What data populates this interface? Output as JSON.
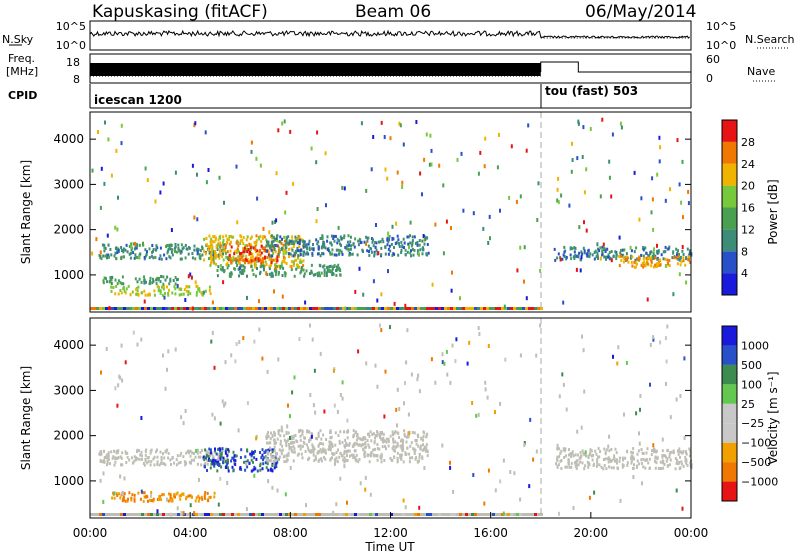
{
  "header": {
    "station": "Kapuskasing (fitACF)",
    "beam": "Beam 06",
    "date": "06/May/2014"
  },
  "noise_panel": {
    "left_label": "N.Sky",
    "right_label": "N.Search",
    "left_ticks": [
      "10^5",
      "10^0"
    ],
    "right_ticks": [
      "10^5",
      "10^0"
    ]
  },
  "freq_panel": {
    "left_label_1": "Freq.",
    "left_label_2": "[MHz]",
    "right_label": "Nave",
    "left_ticks": [
      "18",
      "8"
    ],
    "right_ticks": [
      "60",
      "0"
    ]
  },
  "cpid_panel": {
    "label": "CPID",
    "programs": [
      {
        "name": "icescan 1200",
        "start_hour": 0
      },
      {
        "name": "tou (fast) 503",
        "start_hour": 18
      }
    ]
  },
  "colors": {
    "power_scale": [
      "#1a1adc",
      "#2850c8",
      "#3c8c78",
      "#4aa050",
      "#78c83c",
      "#f0b400",
      "#f07800",
      "#e61414"
    ],
    "velocity_scale": [
      "#e61414",
      "#f07800",
      "#f0a000",
      "#c8c8c8",
      "#c8c8c8",
      "#64c850",
      "#3c8c50",
      "#2850c8",
      "#1a1adc"
    ],
    "grey_scatter": "#bebeb4"
  },
  "chart_data": [
    {
      "type": "heatmap",
      "name_in_figure": "power",
      "xlabel": "",
      "ylabel": "Slant Range [km]",
      "x_range_hours": [
        0,
        24
      ],
      "y_range_km": [
        180,
        4600
      ],
      "yticks": [
        1000,
        2000,
        3000,
        4000
      ],
      "colorbar": {
        "label": "Power [dB]",
        "ticks": [
          "4",
          "8",
          "12",
          "16",
          "20",
          "24",
          "28"
        ],
        "range": [
          0,
          30
        ]
      },
      "regions": [
        {
          "t0": 0.3,
          "t1": 5.5,
          "r0": 1380,
          "r1": 1720,
          "level": 10
        },
        {
          "t0": 0.8,
          "t1": 5.0,
          "r0": 580,
          "r1": 780,
          "level": 18
        },
        {
          "t0": 0.5,
          "t1": 3.5,
          "r0": 820,
          "r1": 1000,
          "level": 12
        },
        {
          "t0": 4.5,
          "t1": 8.5,
          "r0": 1200,
          "r1": 1900,
          "level": 20
        },
        {
          "t0": 5.5,
          "t1": 7.5,
          "r0": 1300,
          "r1": 1700,
          "level": 26
        },
        {
          "t0": 7.0,
          "t1": 13.5,
          "r0": 1450,
          "r1": 1900,
          "level": 9
        },
        {
          "t0": 5.0,
          "t1": 10.0,
          "r0": 1000,
          "r1": 1250,
          "level": 11
        },
        {
          "t0": 18.5,
          "t1": 24.0,
          "r0": 1350,
          "r1": 1650,
          "level": 9
        },
        {
          "t0": 21.0,
          "t1": 24.0,
          "r0": 1200,
          "r1": 1450,
          "level": 22
        }
      ]
    },
    {
      "type": "heatmap",
      "name_in_figure": "velocity",
      "xlabel": "Time UT",
      "ylabel": "Slant Range [km]",
      "x_range_hours": [
        0,
        24
      ],
      "xticks": [
        "00:00",
        "04:00",
        "08:00",
        "12:00",
        "16:00",
        "20:00",
        "00:00"
      ],
      "y_range_km": [
        180,
        4600
      ],
      "yticks": [
        1000,
        2000,
        3000,
        4000
      ],
      "colorbar": {
        "label": "Velocity [m s⁻¹]",
        "ticks": [
          "1000",
          "500",
          "100",
          "25",
          "−25",
          "−100",
          "−500",
          "−1000"
        ]
      },
      "regions": [
        {
          "t0": 0.3,
          "t1": 5.5,
          "r0": 1380,
          "r1": 1720,
          "level": 0
        },
        {
          "t0": 0.8,
          "t1": 5.0,
          "r0": 580,
          "r1": 780,
          "level": -30
        },
        {
          "t0": 4.5,
          "t1": 7.5,
          "r0": 1250,
          "r1": 1750,
          "level": 150
        },
        {
          "t0": 7.0,
          "t1": 13.5,
          "r0": 1450,
          "r1": 2150,
          "level": 0
        },
        {
          "t0": 18.5,
          "t1": 24.0,
          "r0": 1300,
          "r1": 1750,
          "level": 0
        }
      ]
    }
  ]
}
